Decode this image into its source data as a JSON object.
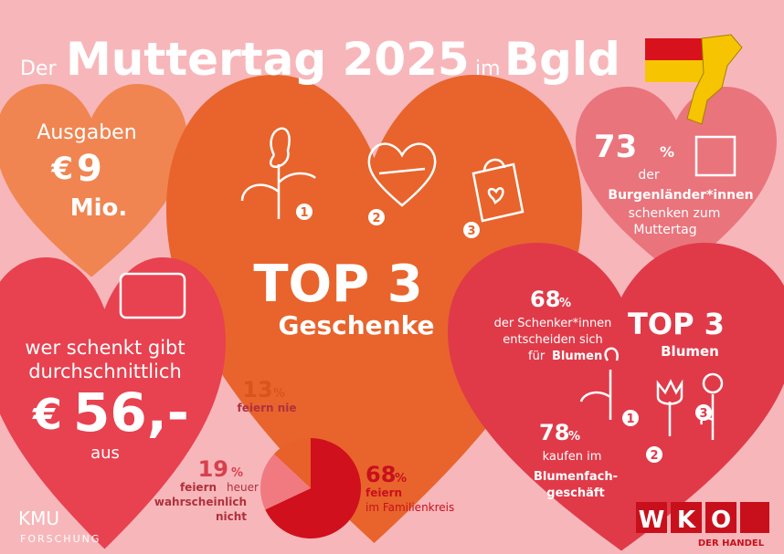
{
  "title": {
    "prefix": "Der",
    "main": "Muttertag 2025",
    "middle": "im",
    "region": "Bgld"
  },
  "spending": {
    "label": "Ausgaben",
    "currency": "€",
    "amount": "9",
    "unit": "Mio."
  },
  "top_gifts": {
    "title": "TOP 3",
    "subtitle": "Geschenke",
    "ranks": [
      "1",
      "2",
      "3"
    ]
  },
  "gifting": {
    "value": "73",
    "unit": "%",
    "lines": [
      "der",
      "Burgenländer*innen",
      "schenken zum",
      "Muttertag"
    ]
  },
  "average": {
    "lines": [
      "wer schenkt gibt",
      "durchschnittlich"
    ],
    "currency": "€",
    "amount": "56,-",
    "suffix": "aus"
  },
  "flowers": {
    "share": "68",
    "unit": "%",
    "share_lines": [
      "der Schenker*innen",
      "entscheiden sich",
      "für",
      "Blumen"
    ],
    "title": "TOP 3",
    "subtitle": "Blumen",
    "ranks": [
      "1",
      "2",
      "3"
    ],
    "shop": "78",
    "shop_lines": [
      "kaufen im",
      "Blumenfach-",
      "geschäft"
    ]
  },
  "chart_data": {
    "type": "pie",
    "unit": "%",
    "categories": [
      "feiern im Familienkreis",
      "feiern heuer wahrscheinlich nicht",
      "feiern nie"
    ],
    "label_lines": [
      [
        "feiern",
        "im Familienkreis"
      ],
      [
        "feiern",
        "heuer",
        "wahrscheinlich",
        "nicht"
      ],
      [
        "feiern nie"
      ]
    ],
    "values": [
      68,
      19,
      13
    ],
    "colors": [
      "#d0101c",
      "#f07a80",
      "#e8602a"
    ]
  },
  "logos": {
    "kmu": "KMU",
    "kmu_sub": "FORSCHUNG",
    "wko": [
      "W",
      "K",
      "O"
    ],
    "wko_sub": "DER HANDEL"
  }
}
